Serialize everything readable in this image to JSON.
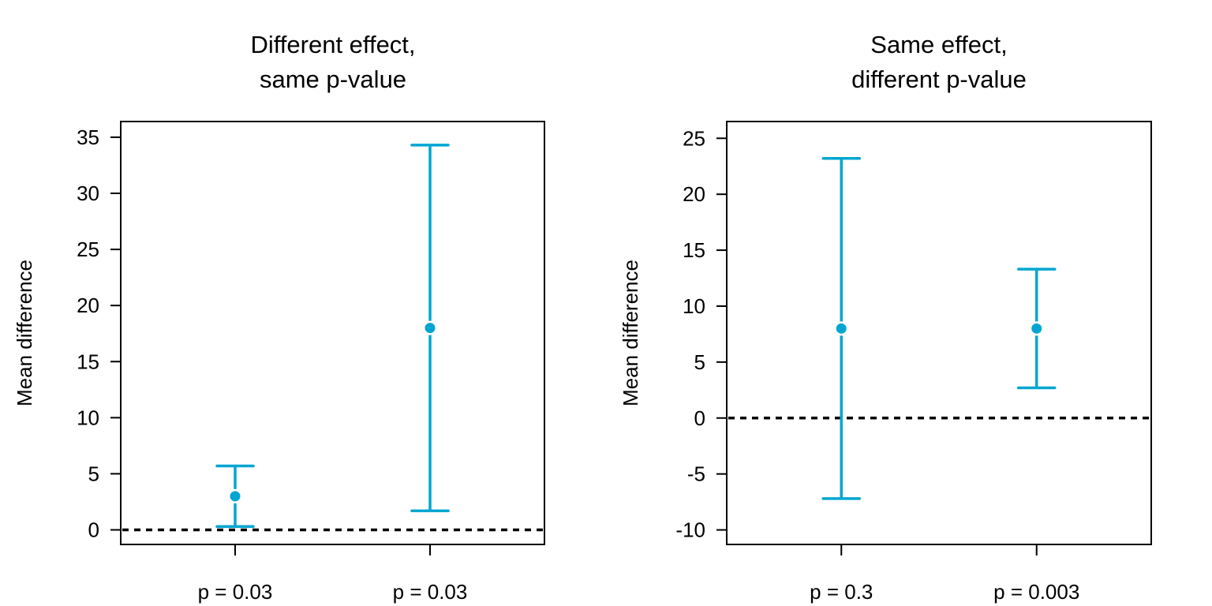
{
  "colors": {
    "accent": "#00a6d1",
    "axis": "#000000",
    "reference_line": "#000000"
  },
  "chart_data": [
    {
      "type": "errorbar",
      "title": [
        "Different effect,",
        "same p-value"
      ],
      "xlabel": "",
      "ylabel": "Mean difference",
      "categories": [
        "p = 0.03",
        "p = 0.03"
      ],
      "ylim": [
        -1.3,
        36.4
      ],
      "yticks": [
        0,
        5,
        10,
        15,
        20,
        25,
        30,
        35
      ],
      "reference_line": 0,
      "points": [
        {
          "label": "p = 0.03",
          "mean": 3.0,
          "lower": 0.3,
          "upper": 5.7
        },
        {
          "label": "p = 0.03",
          "mean": 18.0,
          "lower": 1.7,
          "upper": 34.3
        }
      ],
      "grid": false
    },
    {
      "type": "errorbar",
      "title": [
        "Same effect,",
        "different p-value"
      ],
      "xlabel": "",
      "ylabel": "Mean difference",
      "categories": [
        "p = 0.3",
        "p = 0.003"
      ],
      "ylim": [
        -11.3,
        26.5
      ],
      "yticks": [
        -10,
        -5,
        0,
        5,
        10,
        15,
        20,
        25
      ],
      "reference_line": 0,
      "points": [
        {
          "label": "p = 0.3",
          "mean": 8.0,
          "lower": -7.2,
          "upper": 23.2
        },
        {
          "label": "p = 0.003",
          "mean": 8.0,
          "lower": 2.7,
          "upper": 13.3
        }
      ],
      "grid": false
    }
  ]
}
